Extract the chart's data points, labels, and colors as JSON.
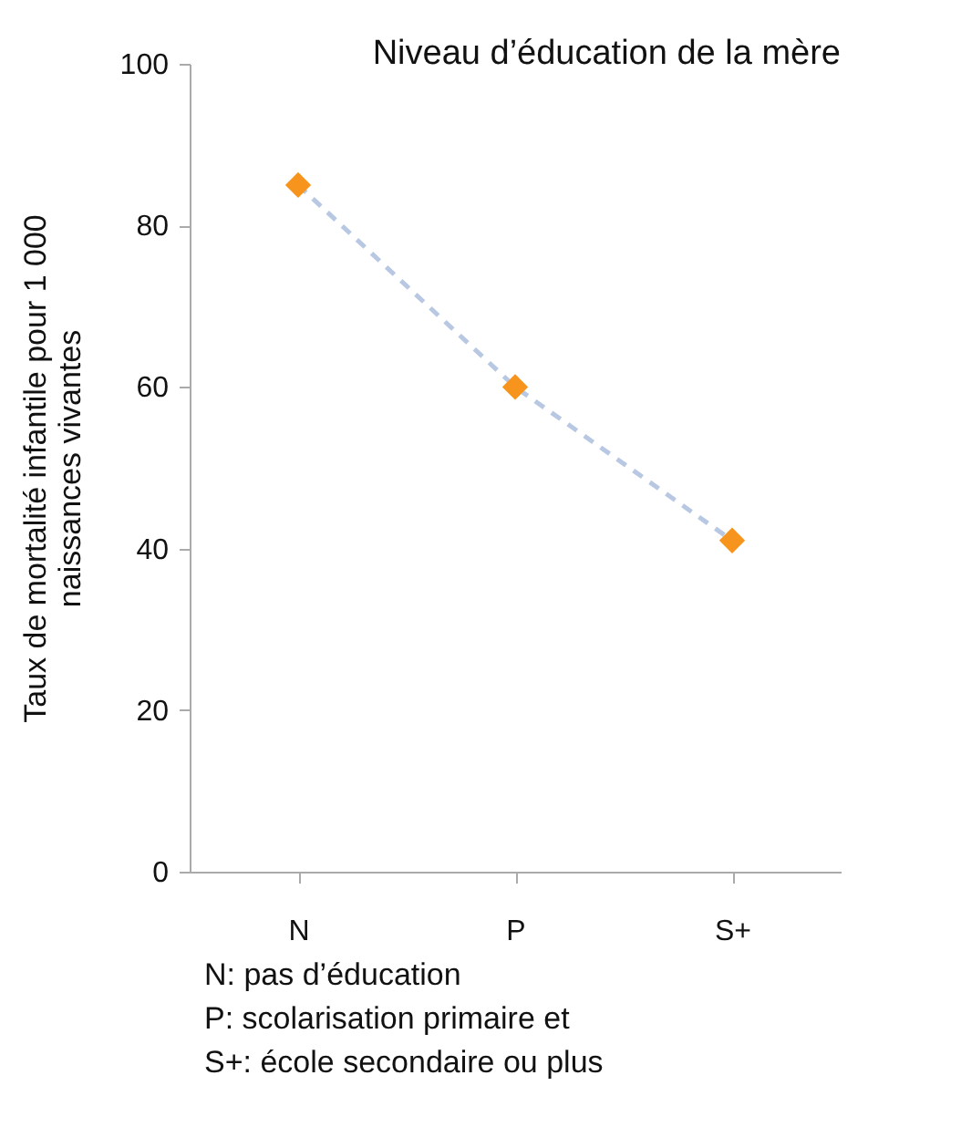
{
  "chart_data": {
    "type": "line",
    "title": "Niveau d’éducation de la mère",
    "ylabel": "Taux de mortalité infantile pour 1 000\nnaissances vivantes",
    "categories": [
      "N",
      "P",
      "S+"
    ],
    "series": [
      {
        "color": "#b8c8e2",
        "line_style": "dashed",
        "marker": "none",
        "values": [
          85,
          60,
          41
        ]
      },
      {
        "type": "scatter",
        "color": "#f7941d",
        "marker": "diamond",
        "values": [
          85,
          60,
          41
        ]
      }
    ],
    "ylim": [
      0,
      100
    ],
    "yticks": [
      0,
      20,
      40,
      60,
      80,
      100
    ],
    "grid": false,
    "annotations": [
      "N: pas d’éducation",
      "P: scolarisation primaire et",
      "S+: école secondaire ou plus"
    ]
  }
}
